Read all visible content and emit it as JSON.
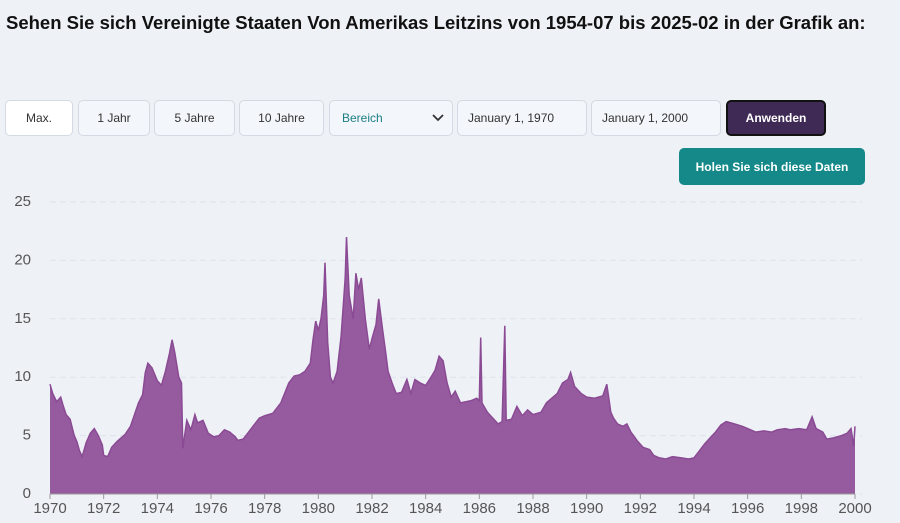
{
  "header": {
    "title": "Sehen Sie sich Vereinigte Staaten Von Amerikas Leitzins von 1954-07 bis 2025-02 in der Grafik an:"
  },
  "controls": {
    "max": "Max.",
    "one_year": "1 Jahr",
    "five_years": "5 Jahre",
    "ten_years": "10 Jahre",
    "range": "Bereich",
    "start_date": "January 1, 1970",
    "end_date": "January 1, 2000",
    "apply": "Anwenden",
    "get_data": "Holen Sie sich diese Daten"
  },
  "chart_data": {
    "type": "area",
    "color": "#8b4a94",
    "grid": true,
    "xlim": [
      1970,
      2000
    ],
    "xticks": [
      1970,
      1972,
      1974,
      1976,
      1978,
      1980,
      1982,
      1984,
      1986,
      1988,
      1990,
      1992,
      1994,
      1996,
      1998,
      2000
    ],
    "ylim": [
      0,
      25
    ],
    "yticks": [
      0,
      5,
      10,
      15,
      20,
      25
    ],
    "x": [
      1970.0,
      1970.1,
      1970.25,
      1970.4,
      1970.5,
      1970.6,
      1970.75,
      1970.9,
      1971.0,
      1971.1,
      1971.2,
      1971.35,
      1971.5,
      1971.65,
      1971.8,
      1971.95,
      1972.0,
      1972.15,
      1972.3,
      1972.5,
      1972.65,
      1972.8,
      1973.0,
      1973.15,
      1973.3,
      1973.45,
      1973.55,
      1973.65,
      1973.8,
      1974.0,
      1974.15,
      1974.3,
      1974.45,
      1974.55,
      1974.65,
      1974.8,
      1974.9,
      1974.95,
      1975.1,
      1975.25,
      1975.4,
      1975.5,
      1975.7,
      1975.9,
      1976.1,
      1976.3,
      1976.5,
      1976.7,
      1976.9,
      1977.0,
      1977.2,
      1977.4,
      1977.6,
      1977.8,
      1978.0,
      1978.3,
      1978.6,
      1978.9,
      1979.1,
      1979.3,
      1979.5,
      1979.7,
      1979.8,
      1979.9,
      1980.0,
      1980.1,
      1980.2,
      1980.25,
      1980.35,
      1980.45,
      1980.55,
      1980.7,
      1980.85,
      1981.0,
      1981.05,
      1981.15,
      1981.3,
      1981.4,
      1981.5,
      1981.6,
      1981.75,
      1981.9,
      1982.0,
      1982.15,
      1982.25,
      1982.4,
      1982.5,
      1982.6,
      1982.75,
      1982.9,
      1983.1,
      1983.3,
      1983.45,
      1983.6,
      1983.8,
      1984.0,
      1984.2,
      1984.35,
      1984.5,
      1984.65,
      1984.8,
      1984.95,
      1985.1,
      1985.3,
      1985.5,
      1985.7,
      1985.9,
      1986.0,
      1986.05,
      1986.1,
      1986.3,
      1986.5,
      1986.7,
      1986.85,
      1986.95,
      1987.0,
      1987.2,
      1987.4,
      1987.6,
      1987.8,
      1988.0,
      1988.3,
      1988.5,
      1988.7,
      1988.9,
      1989.1,
      1989.3,
      1989.4,
      1989.55,
      1989.8,
      1990.0,
      1990.3,
      1990.6,
      1990.75,
      1990.9,
      1991.0,
      1991.15,
      1991.35,
      1991.5,
      1991.65,
      1991.9,
      1992.1,
      1992.35,
      1992.5,
      1992.7,
      1992.95,
      1993.2,
      1993.5,
      1993.8,
      1994.0,
      1994.2,
      1994.4,
      1994.6,
      1994.8,
      1995.0,
      1995.2,
      1995.5,
      1995.8,
      1996.0,
      1996.3,
      1996.6,
      1996.9,
      1997.1,
      1997.4,
      1997.6,
      1997.9,
      1998.2,
      1998.4,
      1998.55,
      1998.8,
      1998.95,
      1999.2,
      1999.5,
      1999.7,
      1999.85,
      1999.95,
      2000.0
    ],
    "values": [
      9.4,
      8.6,
      7.9,
      8.3,
      7.5,
      6.8,
      6.4,
      5.0,
      4.5,
      3.7,
      3.2,
      4.4,
      5.2,
      5.6,
      5.0,
      4.2,
      3.3,
      3.2,
      4.0,
      4.5,
      4.8,
      5.1,
      5.8,
      6.8,
      7.8,
      8.5,
      10.4,
      11.2,
      10.8,
      9.7,
      9.3,
      10.5,
      12.0,
      13.2,
      12.1,
      10.0,
      9.5,
      3.9,
      6.3,
      5.5,
      6.8,
      6.1,
      6.3,
      5.2,
      4.9,
      5.0,
      5.5,
      5.3,
      4.9,
      4.6,
      4.7,
      5.3,
      5.9,
      6.5,
      6.7,
      6.9,
      7.8,
      9.5,
      10.1,
      10.2,
      10.5,
      11.2,
      13.2,
      14.8,
      14.0,
      15.0,
      17.0,
      19.8,
      13.0,
      10.0,
      9.5,
      10.5,
      13.5,
      18.5,
      22.0,
      17.0,
      15.0,
      18.9,
      17.5,
      18.5,
      15.0,
      12.4,
      13.3,
      14.5,
      16.7,
      14.0,
      12.3,
      10.5,
      9.5,
      8.6,
      8.7,
      9.8,
      8.6,
      9.8,
      9.5,
      9.3,
      10.0,
      10.6,
      11.8,
      11.4,
      9.5,
      8.3,
      8.8,
      7.8,
      7.9,
      8.0,
      8.2,
      8.0,
      13.4,
      7.8,
      7.0,
      6.5,
      6.0,
      6.2,
      14.4,
      6.3,
      6.4,
      7.5,
      6.7,
      7.2,
      6.8,
      7.0,
      7.8,
      8.2,
      8.6,
      9.5,
      9.8,
      10.4,
      9.2,
      8.6,
      8.3,
      8.2,
      8.4,
      9.4,
      7.0,
      6.5,
      6.0,
      5.8,
      6.0,
      5.3,
      4.5,
      4.0,
      3.8,
      3.3,
      3.1,
      3.0,
      3.2,
      3.1,
      3.0,
      3.1,
      3.7,
      4.3,
      4.8,
      5.3,
      5.9,
      6.2,
      6.0,
      5.8,
      5.6,
      5.3,
      5.4,
      5.3,
      5.5,
      5.6,
      5.5,
      5.6,
      5.5,
      6.6,
      5.6,
      5.3,
      4.7,
      4.8,
      5.0,
      5.2,
      5.6,
      4.1,
      5.8
    ]
  }
}
